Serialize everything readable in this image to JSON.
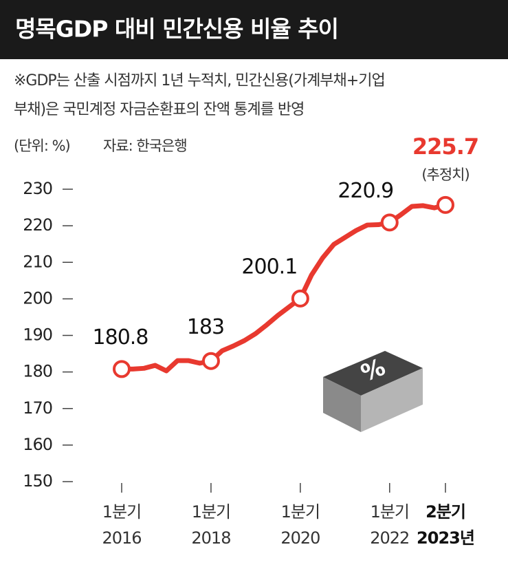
{
  "chart_data": {
    "type": "line",
    "title": "명목GDP 대비 민간신용 비율 추이",
    "subtitle": [
      "※GDP는 산출 시점까지 1년 누적치, 민간신용(가계부채+기업",
      "부채)은 국민계정 자금순환표의 잔액 통계를 반영"
    ],
    "unit": "(단위: %)",
    "source": "자료: 한국은행",
    "categories": [
      [
        "1분기",
        "2016"
      ],
      null,
      null,
      null,
      null,
      null,
      null,
      null,
      [
        "1분기",
        "2018"
      ],
      null,
      null,
      null,
      null,
      null,
      null,
      null,
      [
        "1분기",
        "2020"
      ],
      null,
      null,
      null,
      null,
      null,
      null,
      null,
      [
        "1분기",
        "2022"
      ],
      null,
      null,
      null,
      null,
      [
        "2분기",
        "2023년"
      ]
    ],
    "values": [
      180.8,
      180.8,
      181.0,
      181.8,
      180.3,
      183.1,
      183.1,
      182.4,
      183.0,
      185.8,
      187.1,
      188.6,
      190.5,
      192.9,
      195.5,
      197.8,
      200.1,
      206.5,
      211.2,
      214.9,
      216.8,
      218.7,
      220.2,
      220.3,
      220.9,
      223.0,
      225.3,
      225.5,
      224.9,
      225.7
    ],
    "value_labels": [
      "180.8",
      null,
      null,
      null,
      null,
      null,
      null,
      null,
      "183",
      null,
      null,
      null,
      null,
      null,
      null,
      null,
      "200.1",
      null,
      null,
      null,
      null,
      null,
      null,
      null,
      "220.9",
      null,
      null,
      null,
      null,
      "225.7"
    ],
    "annotation": "(추정치)",
    "icon_label": "%",
    "color": "#e8392f",
    "ylim": [
      150,
      230
    ],
    "yticks": [
      150,
      160,
      170,
      180,
      190,
      200,
      210,
      220,
      230
    ],
    "grid": false
  }
}
